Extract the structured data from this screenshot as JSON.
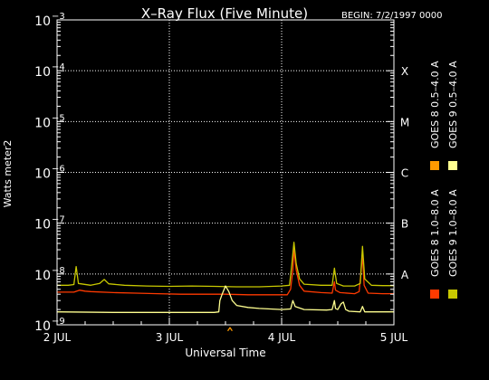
{
  "chart_data": {
    "type": "line",
    "title": "X–Ray Flux (Five Minute)",
    "begin_label": "BEGIN: 7/2/1997 0000",
    "xlabel": "Universal Time",
    "ylabel": "Watts meter2",
    "x_range_days": [
      2,
      5
    ],
    "x_ticks": [
      {
        "day": 2,
        "label": "2 JUL"
      },
      {
        "day": 3,
        "label": "3 JUL"
      },
      {
        "day": 4,
        "label": "4 JUL"
      },
      {
        "day": 5,
        "label": "5 JUL"
      }
    ],
    "y_scale": "log",
    "ylim_exponent": [
      -9,
      -3
    ],
    "y_ticks": [
      {
        "exp": -9,
        "base": "10",
        "sup": "−9"
      },
      {
        "exp": -8,
        "base": "10",
        "sup": "−8"
      },
      {
        "exp": -7,
        "base": "10",
        "sup": "−7"
      },
      {
        "exp": -6,
        "base": "10",
        "sup": "−6"
      },
      {
        "exp": -5,
        "base": "10",
        "sup": "−5"
      },
      {
        "exp": -4,
        "base": "10",
        "sup": "−4"
      },
      {
        "exp": -3,
        "base": "10",
        "sup": "−3"
      }
    ],
    "flare_classes": [
      {
        "exp": -4,
        "label": "X"
      },
      {
        "exp": -5,
        "label": "M"
      },
      {
        "exp": -6,
        "label": "C"
      },
      {
        "exp": -7,
        "label": "B"
      },
      {
        "exp": -8,
        "label": "A"
      }
    ],
    "series": [
      {
        "name": "GOES 8 1.0–8.0 A",
        "color": "#ff3a00",
        "points": [
          [
            2.0,
            4.4e-09
          ],
          [
            2.15,
            4.4e-09
          ],
          [
            2.2,
            4.8e-09
          ],
          [
            2.25,
            4.6e-09
          ],
          [
            2.3,
            4.5e-09
          ],
          [
            2.5,
            4.3e-09
          ],
          [
            2.7,
            4.2e-09
          ],
          [
            2.9,
            4.1e-09
          ],
          [
            3.1,
            4e-09
          ],
          [
            3.3,
            4e-09
          ],
          [
            3.5,
            4e-09
          ],
          [
            3.7,
            3.9e-09
          ],
          [
            3.9,
            3.9e-09
          ],
          [
            4.05,
            3.9e-09
          ],
          [
            4.08,
            5e-09
          ],
          [
            4.1,
            1.2e-08
          ],
          [
            4.11,
            3.2e-08
          ],
          [
            4.13,
            1.2e-08
          ],
          [
            4.16,
            6e-09
          ],
          [
            4.2,
            4.6e-09
          ],
          [
            4.35,
            4.3e-09
          ],
          [
            4.45,
            4.2e-09
          ],
          [
            4.47,
            7e-09
          ],
          [
            4.48,
            4.8e-09
          ],
          [
            4.52,
            4.3e-09
          ],
          [
            4.65,
            4.1e-09
          ],
          [
            4.69,
            4.5e-09
          ],
          [
            4.72,
            2.3e-08
          ],
          [
            4.735,
            6e-09
          ],
          [
            4.77,
            4.2e-09
          ],
          [
            4.9,
            4.1e-09
          ],
          [
            5.0,
            4.1e-09
          ]
        ]
      },
      {
        "name": "GOES 8 0.5–4.0 A",
        "color": "#ff9a00",
        "points": [
          [
            3.52,
            7.6e-10
          ],
          [
            3.54,
            8.8e-10
          ],
          [
            3.56,
            7.6e-10
          ]
        ]
      },
      {
        "name": "GOES 9 1.0–8.0 A",
        "color": "#c8c800",
        "points": [
          [
            2.0,
            6e-09
          ],
          [
            2.1,
            6e-09
          ],
          [
            2.15,
            6.2e-09
          ],
          [
            2.17,
            1.4e-08
          ],
          [
            2.19,
            6.5e-09
          ],
          [
            2.3,
            6e-09
          ],
          [
            2.38,
            6.5e-09
          ],
          [
            2.42,
            7.8e-09
          ],
          [
            2.46,
            6.4e-09
          ],
          [
            2.6,
            6e-09
          ],
          [
            2.8,
            5.8e-09
          ],
          [
            3.0,
            5.7e-09
          ],
          [
            3.2,
            5.8e-09
          ],
          [
            3.4,
            5.7e-09
          ],
          [
            3.6,
            5.6e-09
          ],
          [
            3.8,
            5.6e-09
          ],
          [
            4.0,
            5.8e-09
          ],
          [
            4.07,
            6e-09
          ],
          [
            4.09,
            1.5e-08
          ],
          [
            4.11,
            4.2e-08
          ],
          [
            4.13,
            1.6e-08
          ],
          [
            4.16,
            8e-09
          ],
          [
            4.2,
            6.3e-09
          ],
          [
            4.35,
            6e-09
          ],
          [
            4.45,
            6e-09
          ],
          [
            4.47,
            1.3e-08
          ],
          [
            4.49,
            6.5e-09
          ],
          [
            4.55,
            5.8e-09
          ],
          [
            4.65,
            5.8e-09
          ],
          [
            4.7,
            6.5e-09
          ],
          [
            4.72,
            3.5e-08
          ],
          [
            4.74,
            8e-09
          ],
          [
            4.8,
            6e-09
          ],
          [
            4.9,
            5.9e-09
          ],
          [
            5.0,
            5.9e-09
          ]
        ]
      },
      {
        "name": "GOES 9 0.5–4.0 A",
        "color": "#ffff90",
        "points": [
          [
            2.0,
            1.8e-09
          ],
          [
            2.5,
            1.75e-09
          ],
          [
            3.0,
            1.75e-09
          ],
          [
            3.4,
            1.75e-09
          ],
          [
            3.44,
            1.8e-09
          ],
          [
            3.45,
            3e-09
          ],
          [
            3.47,
            4e-09
          ],
          [
            3.5,
            5.8e-09
          ],
          [
            3.53,
            4.5e-09
          ],
          [
            3.56,
            3e-09
          ],
          [
            3.6,
            2.4e-09
          ],
          [
            3.7,
            2.2e-09
          ],
          [
            3.8,
            2.1e-09
          ],
          [
            3.9,
            2.05e-09
          ],
          [
            4.0,
            2e-09
          ],
          [
            4.08,
            2.05e-09
          ],
          [
            4.1,
            3e-09
          ],
          [
            4.12,
            2.3e-09
          ],
          [
            4.2,
            2e-09
          ],
          [
            4.4,
            1.95e-09
          ],
          [
            4.45,
            2e-09
          ],
          [
            4.47,
            3e-09
          ],
          [
            4.48,
            2.1e-09
          ],
          [
            4.5,
            2e-09
          ],
          [
            4.53,
            2.6e-09
          ],
          [
            4.55,
            2.8e-09
          ],
          [
            4.57,
            2e-09
          ],
          [
            4.6,
            1.85e-09
          ],
          [
            4.7,
            1.8e-09
          ],
          [
            4.72,
            2.3e-09
          ],
          [
            4.74,
            1.8e-09
          ],
          [
            4.9,
            1.8e-09
          ],
          [
            5.0,
            1.8e-09
          ]
        ]
      }
    ]
  }
}
